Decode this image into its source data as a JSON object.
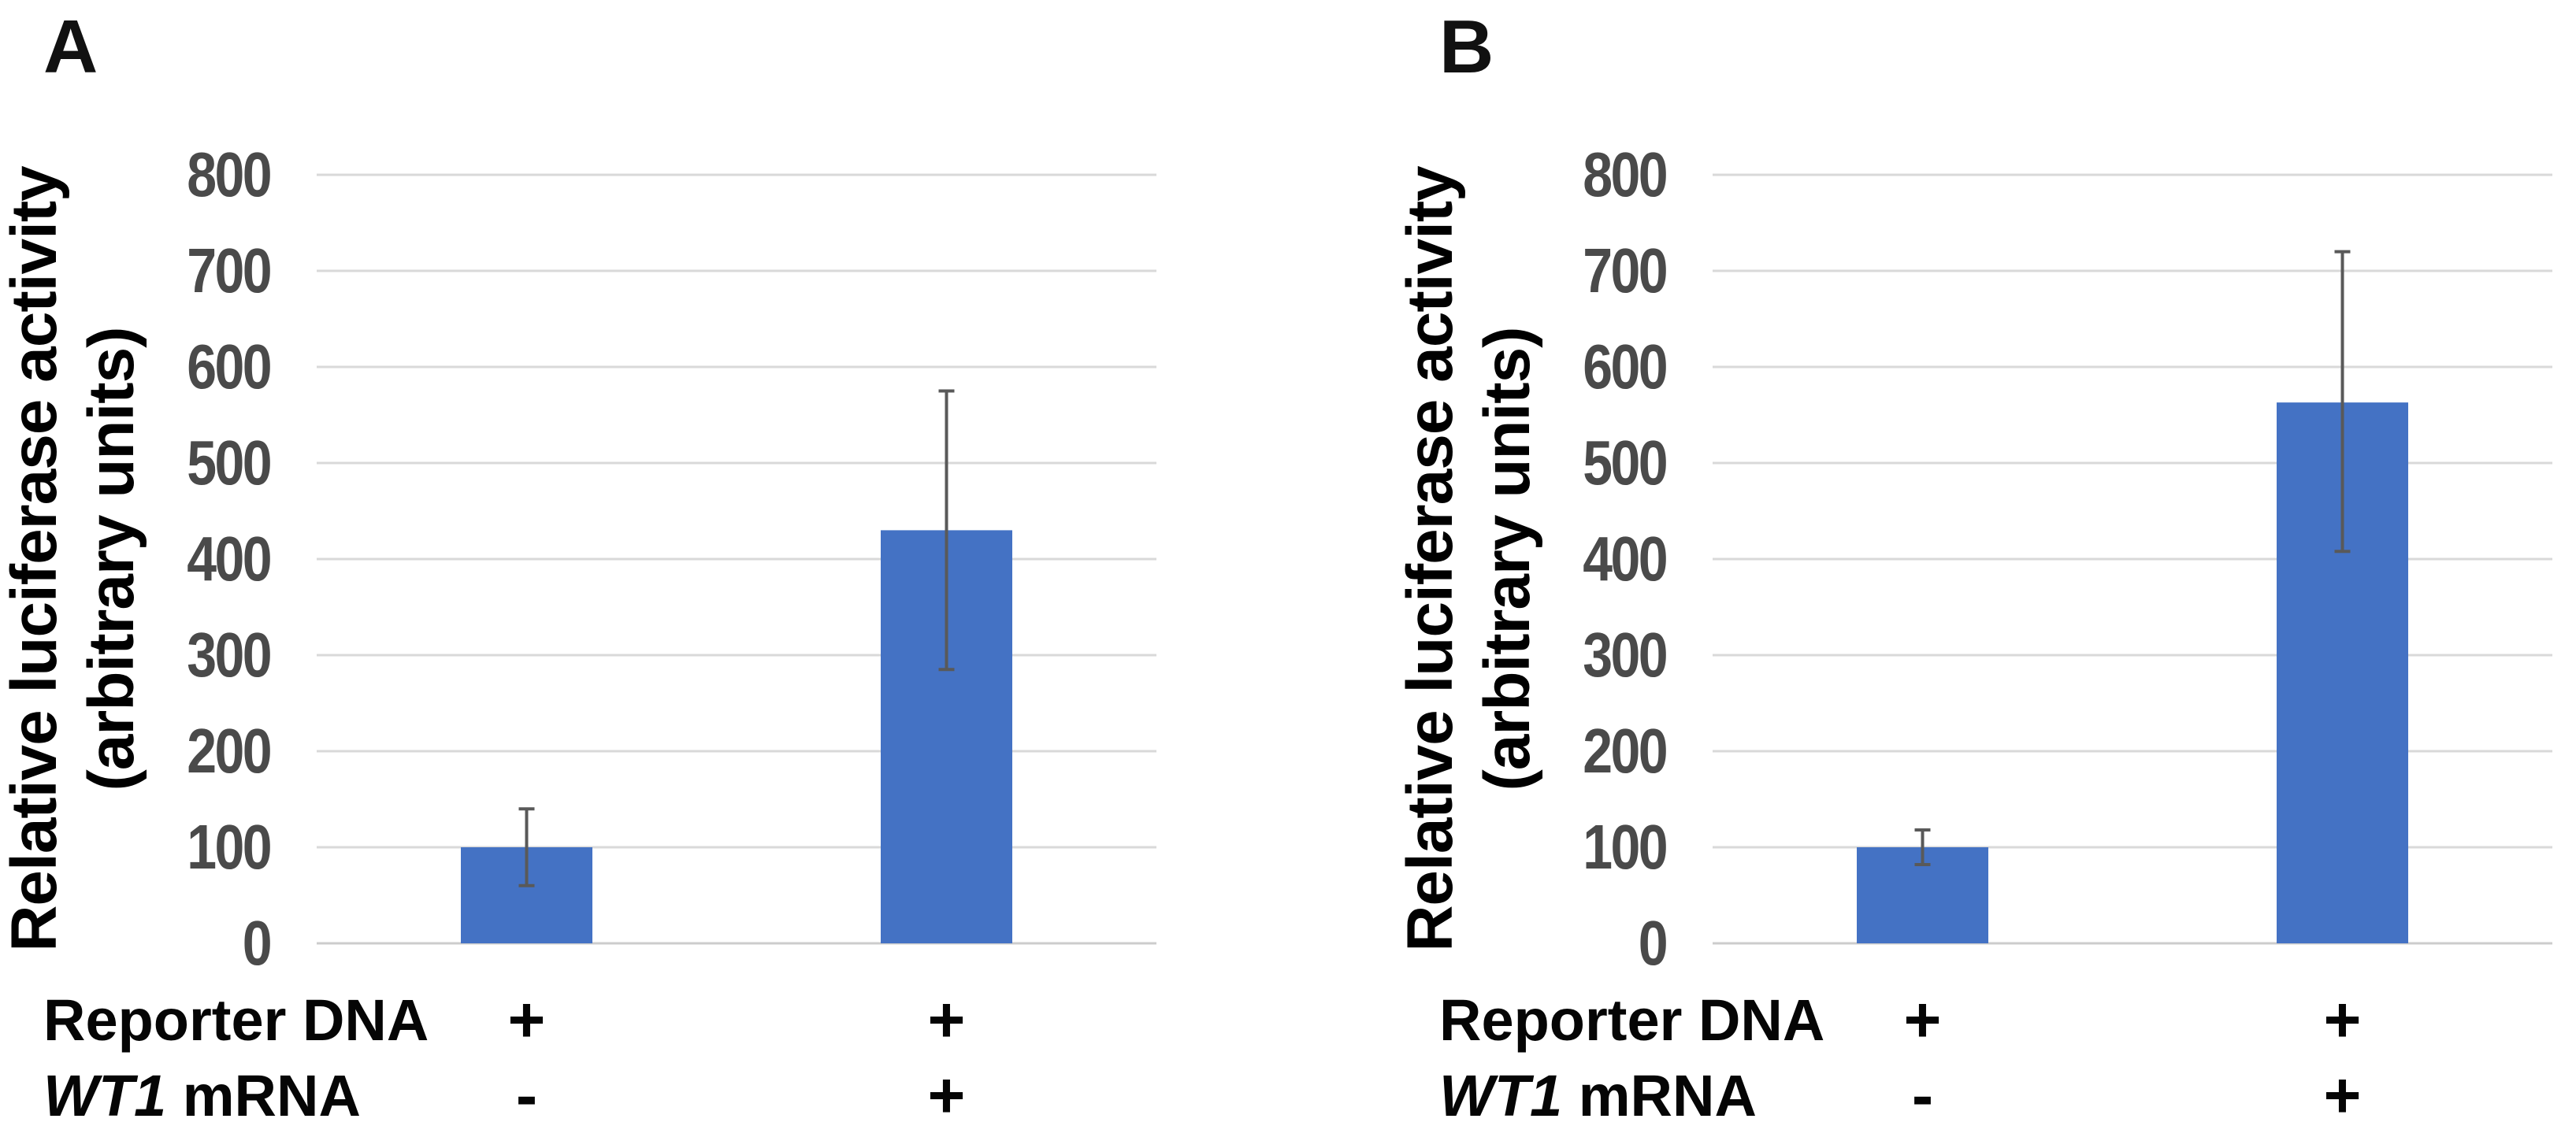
{
  "figure": {
    "background": "#ffffff",
    "panels": [
      {
        "label": "A",
        "y_axis_title_line1": "Relative luciferase activity",
        "y_axis_title_line2": "(arbitrary units)",
        "condition_rows": [
          {
            "parts": [
              {
                "text": "Reporter DNA",
                "italic": false
              }
            ],
            "values": [
              "+",
              "+"
            ]
          },
          {
            "parts": [
              {
                "text": "WT1",
                "italic": true
              },
              {
                "text": " mRNA",
                "italic": false
              }
            ],
            "values": [
              "-",
              "+"
            ]
          }
        ]
      },
      {
        "label": "B",
        "y_axis_title_line1": "Relative luciferase activity",
        "y_axis_title_line2": "(arbitrary units)",
        "condition_rows": [
          {
            "parts": [
              {
                "text": "Reporter DNA",
                "italic": false
              }
            ],
            "values": [
              "+",
              "+"
            ]
          },
          {
            "parts": [
              {
                "text": "WT1",
                "italic": true
              },
              {
                "text": " mRNA",
                "italic": false
              }
            ],
            "values": [
              "-",
              "+"
            ]
          }
        ]
      }
    ]
  },
  "chart_data": [
    {
      "type": "bar",
      "panel": "A",
      "title": "",
      "categories": [
        "Reporter DNA +, WT1 mRNA -",
        "Reporter DNA +, WT1 mRNA +"
      ],
      "values": [
        100,
        430
      ],
      "error_low": [
        60,
        285
      ],
      "error_high": [
        140,
        575
      ],
      "ylabel": "Relative luciferase activity (arbitrary units)",
      "ylim": [
        0,
        800
      ],
      "ytick_step": 100,
      "ytick_labels": [
        "0",
        "100",
        "200",
        "300",
        "400",
        "500",
        "600",
        "700",
        "800"
      ],
      "grid": true,
      "legend": "none"
    },
    {
      "type": "bar",
      "panel": "B",
      "title": "",
      "categories": [
        "Reporter DNA +, WT1 mRNA -",
        "Reporter DNA +, WT1 mRNA +"
      ],
      "values": [
        100,
        563
      ],
      "error_low": [
        82,
        408
      ],
      "error_high": [
        118,
        720
      ],
      "ylabel": "Relative luciferase activity (arbitrary units)",
      "ylim": [
        0,
        800
      ],
      "ytick_step": 100,
      "ytick_labels": [
        "0",
        "100",
        "200",
        "300",
        "400",
        "500",
        "600",
        "700",
        "800"
      ],
      "grid": true,
      "legend": "none"
    }
  ],
  "colors": {
    "bar": "#4472C4",
    "gridline": "#D9D9D9",
    "baseline": "#CCCCCC",
    "error_bar": "#595959",
    "tick_text": "#4A4A4A",
    "label_text": "#000000"
  }
}
